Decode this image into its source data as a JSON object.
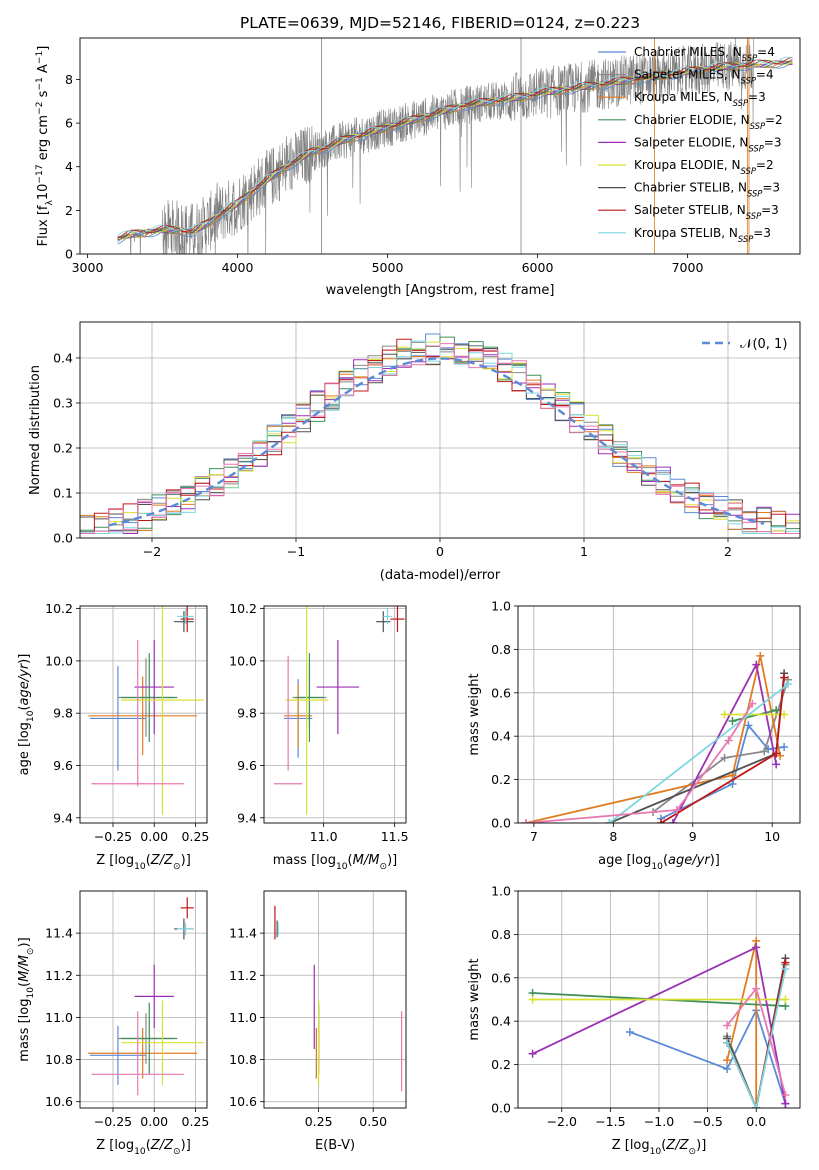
{
  "figure": {
    "title": "PLATE=0639, MJD=52146, FIBERID=0124, z=0.223"
  },
  "colors": {
    "chabrier_miles": "#5b8bd6",
    "salpeter_miles": "#8a8a8a",
    "kroupa_miles": "#e07b20",
    "chabrier_elodie": "#3f8f5a",
    "salpeter_elodie": "#9b30b5",
    "kroupa_elodie": "#d8e030",
    "chabrier_stelib": "#505050",
    "salpeter_stelib": "#c01818",
    "kroupa_stelib": "#7fd6e0",
    "pink_extra": "#e878b0",
    "data": "#808080",
    "normal": "#5b8bd6"
  },
  "chart_data": [
    {
      "id": "spectrum",
      "type": "line",
      "xlabel": "wavelength [Angstrom, rest frame]",
      "ylabel": "Flux [fλ10⁻¹⁷ erg cm⁻² s⁻¹ A⁻¹]",
      "xlim": [
        2950,
        7750
      ],
      "ylim": [
        0,
        9.9
      ],
      "xticks": [
        3000,
        4000,
        5000,
        6000,
        7000
      ],
      "yticks": [
        0,
        2,
        4,
        6,
        8
      ],
      "grid": false,
      "legend_position": "top-right",
      "legend": [
        "Chabrier MILES, N_SSP=4",
        "Salpeter MILES, N_SSP=4",
        "Kroupa MILES, N_SSP=3",
        "Chabrier ELODIE, N_SSP=2",
        "Salpeter ELODIE, N_SSP=3",
        "Kroupa ELODIE, N_SSP=2",
        "Chabrier STELIB, N_SSP=3",
        "Salpeter STELIB, N_SSP=3",
        "Kroupa STELIB, N_SSP=3"
      ],
      "model_x": [
        3200,
        3300,
        3400,
        3500,
        3600,
        3700,
        3800,
        3900,
        4000,
        4100,
        4200,
        4300,
        4400,
        4500,
        4600,
        4700,
        4800,
        4900,
        5000,
        5100,
        5200,
        5300,
        5400,
        5500,
        5600,
        5700,
        5800,
        5900,
        6000,
        6100,
        6200,
        6300,
        6400,
        6500,
        6600,
        6700,
        6800,
        6900,
        7000,
        7100,
        7200,
        7300,
        7400,
        7500,
        7600,
        7700
      ],
      "model_y": [
        0.7,
        0.9,
        1.0,
        1.1,
        1.1,
        1.0,
        1.4,
        1.9,
        2.3,
        2.9,
        3.4,
        3.9,
        4.3,
        4.7,
        4.9,
        5.2,
        5.4,
        5.6,
        5.8,
        6.0,
        6.2,
        6.4,
        6.6,
        6.8,
        6.9,
        7.0,
        7.1,
        7.2,
        7.35,
        7.45,
        7.55,
        7.65,
        7.75,
        7.85,
        7.95,
        8.05,
        8.15,
        8.25,
        8.35,
        8.45,
        8.55,
        8.6,
        8.65,
        8.7,
        8.75,
        8.8
      ],
      "data_range": [
        3220,
        7440
      ]
    },
    {
      "id": "residuals",
      "type": "step",
      "xlabel": "(data-model)/error",
      "ylabel": "Normed distribution",
      "xlim": [
        -2.5,
        2.5
      ],
      "ylim": [
        0,
        0.48
      ],
      "xticks": [
        -2,
        -1,
        0,
        1,
        2
      ],
      "yticks": [
        0.0,
        0.1,
        0.2,
        0.3,
        0.4
      ],
      "grid": true,
      "legend_position": "top-right",
      "legend": [
        "𝒩(0, 1)"
      ],
      "bin_width": 0.1,
      "n_series": 10
    },
    {
      "id": "z_age",
      "type": "errorbar",
      "xlabel": "Z [log₁₀(Z/Z⊙)]",
      "ylabel": "age  [log₁₀(age/yr)]",
      "xlim": [
        -0.45,
        0.32
      ],
      "ylim": [
        9.38,
        10.21
      ],
      "xticks": [
        -0.25,
        0.0,
        0.25
      ],
      "xtick_labels": [
        "−0.25",
        "0.00",
        "0.25"
      ],
      "yticks": [
        9.4,
        9.6,
        9.8,
        10.0,
        10.2
      ],
      "grid": true,
      "points": [
        {
          "c": "chabrier_miles",
          "x": -0.22,
          "xe": 0.17,
          "y": 9.78,
          "ye": 0.2
        },
        {
          "c": "salpeter_miles",
          "x": -0.05,
          "xe": 0.17,
          "y": 9.86,
          "ye": 0.15
        },
        {
          "c": "kroupa_miles",
          "x": -0.07,
          "xe": 0.33,
          "y": 9.79,
          "ye": 0.15
        },
        {
          "c": "chabrier_elodie",
          "x": -0.03,
          "xe": 0.17,
          "y": 9.86,
          "ye": 0.17
        },
        {
          "c": "salpeter_elodie",
          "x": 0.0,
          "xe": 0.12,
          "y": 9.9,
          "ye": 0.18
        },
        {
          "c": "kroupa_elodie",
          "x": 0.05,
          "xe": 0.25,
          "y": 9.85,
          "ye": 0.44
        },
        {
          "c": "chabrier_stelib",
          "x": 0.18,
          "xe": 0.06,
          "y": 10.15,
          "ye": 0.04
        },
        {
          "c": "salpeter_stelib",
          "x": 0.2,
          "xe": 0.04,
          "y": 10.16,
          "ye": 0.05
        },
        {
          "c": "kroupa_stelib",
          "x": 0.19,
          "xe": 0.05,
          "y": 10.17,
          "ye": 0.03
        },
        {
          "c": "pink_extra",
          "x": -0.1,
          "xe": 0.28,
          "y": 9.53,
          "ye": 0.0
        },
        {
          "c": "pink_extra",
          "x": -0.1,
          "xe": 0.0,
          "y": 9.8,
          "ye": 0.28
        }
      ]
    },
    {
      "id": "mass_age",
      "type": "errorbar",
      "xlabel": "mass [log₁₀(M/M⊙)]",
      "ylabel": "",
      "xlim": [
        10.58,
        11.58
      ],
      "ylim": [
        9.38,
        10.21
      ],
      "xticks": [
        11.0,
        11.5
      ],
      "xtick_labels": [
        "11.0",
        "11.5"
      ],
      "yticks": [
        9.4,
        9.6,
        9.8,
        10.0,
        10.2
      ],
      "grid": true,
      "points": [
        {
          "c": "chabrier_miles",
          "x": 10.82,
          "xe": 0.1,
          "y": 9.78,
          "ye": 0.15
        },
        {
          "c": "salpeter_miles",
          "x": 10.9,
          "xe": 0.12,
          "y": 9.86,
          "ye": 0.12
        },
        {
          "c": "kroupa_miles",
          "x": 10.82,
          "xe": 0.1,
          "y": 9.79,
          "ye": 0.12
        },
        {
          "c": "chabrier_elodie",
          "x": 10.9,
          "xe": 0.1,
          "y": 9.86,
          "ye": 0.17
        },
        {
          "c": "salpeter_elodie",
          "x": 11.1,
          "xe": 0.15,
          "y": 9.9,
          "ye": 0.18
        },
        {
          "c": "kroupa_elodie",
          "x": 10.88,
          "xe": 0.15,
          "y": 9.85,
          "ye": 0.44
        },
        {
          "c": "chabrier_stelib",
          "x": 11.42,
          "xe": 0.05,
          "y": 10.15,
          "ye": 0.04
        },
        {
          "c": "salpeter_stelib",
          "x": 11.52,
          "xe": 0.05,
          "y": 10.16,
          "ye": 0.05
        },
        {
          "c": "kroupa_stelib",
          "x": 11.45,
          "xe": 0.03,
          "y": 10.17,
          "ye": 0.03
        },
        {
          "c": "pink_extra",
          "x": 10.75,
          "xe": 0.1,
          "y": 9.53,
          "ye": 0.0
        },
        {
          "c": "pink_extra",
          "x": 10.75,
          "xe": 0.0,
          "y": 9.8,
          "ye": 0.22
        }
      ]
    },
    {
      "id": "weight_age",
      "type": "line",
      "xlabel": "age  [log₁₀(age/yr)]",
      "ylabel": "mass weight",
      "xlim": [
        6.8,
        10.35
      ],
      "ylim": [
        0,
        1.0
      ],
      "xticks": [
        7,
        8,
        9,
        10
      ],
      "yticks": [
        0.0,
        0.2,
        0.4,
        0.6,
        0.8,
        1.0
      ],
      "grid": true,
      "series": [
        {
          "c": "chabrier_miles",
          "x": [
            8.6,
            9.5,
            9.7,
            9.95,
            10.15
          ],
          "y": [
            0.02,
            0.18,
            0.45,
            0.34,
            0.35
          ]
        },
        {
          "c": "salpeter_miles",
          "x": [
            8.5,
            9.4,
            9.9,
            10.2
          ],
          "y": [
            0.05,
            0.3,
            0.33,
            0.66
          ]
        },
        {
          "c": "kroupa_miles",
          "x": [
            6.9,
            9.5,
            9.85,
            10.1
          ],
          "y": [
            0.0,
            0.22,
            0.77,
            0.31
          ]
        },
        {
          "c": "chabrier_elodie",
          "x": [
            9.5,
            10.05
          ],
          "y": [
            0.47,
            0.52
          ]
        },
        {
          "c": "salpeter_elodie",
          "x": [
            8.75,
            9.8,
            10.05
          ],
          "y": [
            0.0,
            0.73,
            0.27
          ]
        },
        {
          "c": "kroupa_elodie",
          "x": [
            9.4,
            10.15
          ],
          "y": [
            0.5,
            0.5
          ]
        },
        {
          "c": "chabrier_stelib",
          "x": [
            7.95,
            10.05,
            10.15
          ],
          "y": [
            0.0,
            0.32,
            0.69
          ]
        },
        {
          "c": "salpeter_stelib",
          "x": [
            8.6,
            10.05,
            10.15
          ],
          "y": [
            0.0,
            0.32,
            0.67
          ]
        },
        {
          "c": "kroupa_stelib",
          "x": [
            7.95,
            10.2
          ],
          "y": [
            0.0,
            0.64
          ]
        },
        {
          "c": "pink_extra",
          "x": [
            6.9,
            8.8,
            9.45,
            9.75
          ],
          "y": [
            0.0,
            0.06,
            0.38,
            0.55
          ]
        }
      ]
    },
    {
      "id": "z_mass",
      "type": "errorbar",
      "xlabel": "Z [log₁₀(Z/Z⊙)]",
      "ylabel": "mass [log₁₀(M/M⊙)]",
      "xlim": [
        -0.45,
        0.32
      ],
      "ylim": [
        10.57,
        11.6
      ],
      "xticks": [
        -0.25,
        0.0,
        0.25
      ],
      "xtick_labels": [
        "−0.25",
        "0.00",
        "0.25"
      ],
      "yticks": [
        10.6,
        10.8,
        11.0,
        11.2,
        11.4
      ],
      "grid": true,
      "points": [
        {
          "c": "chabrier_miles",
          "x": -0.22,
          "xe": 0.17,
          "y": 10.82,
          "ye": 0.14
        },
        {
          "c": "salpeter_miles",
          "x": -0.05,
          "xe": 0.17,
          "y": 10.9,
          "ye": 0.12
        },
        {
          "c": "kroupa_miles",
          "x": -0.07,
          "xe": 0.33,
          "y": 10.83,
          "ye": 0.12
        },
        {
          "c": "chabrier_elodie",
          "x": -0.03,
          "xe": 0.17,
          "y": 10.9,
          "ye": 0.17
        },
        {
          "c": "salpeter_elodie",
          "x": 0.0,
          "xe": 0.12,
          "y": 11.1,
          "ye": 0.15
        },
        {
          "c": "kroupa_elodie",
          "x": 0.05,
          "xe": 0.25,
          "y": 10.88,
          "ye": 0.2
        },
        {
          "c": "chabrier_stelib",
          "x": 0.18,
          "xe": 0.06,
          "y": 11.42,
          "ye": 0.05
        },
        {
          "c": "salpeter_stelib",
          "x": 0.2,
          "xe": 0.04,
          "y": 11.52,
          "ye": 0.05
        },
        {
          "c": "kroupa_stelib",
          "x": 0.19,
          "xe": 0.05,
          "y": 11.42,
          "ye": 0.03
        },
        {
          "c": "pink_extra",
          "x": -0.1,
          "xe": 0.28,
          "y": 10.73,
          "ye": 0.0
        },
        {
          "c": "pink_extra",
          "x": -0.1,
          "xe": 0.0,
          "y": 10.83,
          "ye": 0.2
        }
      ]
    },
    {
      "id": "ebv_mass",
      "type": "errorbar",
      "xlabel": "E(B-V)",
      "ylabel": "",
      "xlim": [
        0.0,
        0.65
      ],
      "ylim": [
        10.57,
        11.6
      ],
      "xticks": [
        0.25,
        0.5
      ],
      "xtick_labels": [
        "0.25",
        "0.50"
      ],
      "yticks": [
        10.6,
        10.8,
        11.0,
        11.2,
        11.4
      ],
      "grid": true,
      "points": [
        {
          "c": "chabrier_miles",
          "x": 0.24,
          "xe": 0.0,
          "y": 10.83,
          "ye": 0.12
        },
        {
          "c": "salpeter_miles",
          "x": 0.25,
          "xe": 0.0,
          "y": 10.9,
          "ye": 0.14
        },
        {
          "c": "kroupa_miles",
          "x": 0.24,
          "xe": 0.0,
          "y": 10.83,
          "ye": 0.12
        },
        {
          "c": "chabrier_elodie",
          "x": 0.25,
          "xe": 0.0,
          "y": 10.9,
          "ye": 0.17
        },
        {
          "c": "salpeter_elodie",
          "x": 0.23,
          "xe": 0.0,
          "y": 11.05,
          "ye": 0.2
        },
        {
          "c": "kroupa_elodie",
          "x": 0.25,
          "xe": 0.0,
          "y": 10.88,
          "ye": 0.2
        },
        {
          "c": "chabrier_stelib",
          "x": 0.06,
          "xe": 0.0,
          "y": 11.42,
          "ye": 0.04
        },
        {
          "c": "salpeter_stelib",
          "x": 0.05,
          "xe": 0.0,
          "y": 11.45,
          "ye": 0.08
        },
        {
          "c": "kroupa_stelib",
          "x": 0.065,
          "xe": 0.0,
          "y": 11.42,
          "ye": 0.03
        },
        {
          "c": "pink_extra",
          "x": 0.63,
          "xe": 0.0,
          "y": 10.84,
          "ye": 0.19
        }
      ]
    },
    {
      "id": "weight_z",
      "type": "line",
      "xlabel": "Z [log₁₀(Z/Z⊙)]",
      "ylabel": "mass weight",
      "xlim": [
        -2.45,
        0.45
      ],
      "ylim": [
        0,
        1.0
      ],
      "xticks": [
        -2.0,
        -1.5,
        -1.0,
        -0.5,
        0.0
      ],
      "xtick_labels": [
        "−2.0",
        "−1.5",
        "−1.0",
        "−0.5",
        "0.0"
      ],
      "yticks": [
        0.0,
        0.2,
        0.4,
        0.6,
        0.8,
        1.0
      ],
      "grid": true,
      "series": [
        {
          "c": "chabrier_miles",
          "x": [
            -1.3,
            -0.3,
            0.0,
            0.3
          ],
          "y": [
            0.35,
            0.18,
            0.45,
            0.02
          ]
        },
        {
          "c": "salpeter_miles",
          "x": [
            -0.3,
            0.0,
            0.3
          ],
          "y": [
            0.33,
            0.0,
            0.66
          ]
        },
        {
          "c": "kroupa_miles",
          "x": [
            -0.3,
            0.0,
            0.0
          ],
          "y": [
            0.22,
            0.77,
            0.0
          ]
        },
        {
          "c": "chabrier_elodie",
          "x": [
            -2.3,
            0.3
          ],
          "y": [
            0.53,
            0.47
          ]
        },
        {
          "c": "salpeter_elodie",
          "x": [
            -2.3,
            0.0,
            0.3
          ],
          "y": [
            0.25,
            0.74,
            0.02
          ]
        },
        {
          "c": "kroupa_elodie",
          "x": [
            -2.3,
            0.3
          ],
          "y": [
            0.5,
            0.5
          ]
        },
        {
          "c": "chabrier_stelib",
          "x": [
            -0.3,
            0.0,
            0.3
          ],
          "y": [
            0.32,
            0.0,
            0.69
          ]
        },
        {
          "c": "salpeter_stelib",
          "x": [
            -0.3,
            0.0,
            0.3
          ],
          "y": [
            0.3,
            0.0,
            0.67
          ]
        },
        {
          "c": "kroupa_stelib",
          "x": [
            -0.3,
            0.0,
            0.3
          ],
          "y": [
            0.3,
            0.0,
            0.64
          ]
        },
        {
          "c": "pink_extra",
          "x": [
            -0.3,
            0.0,
            0.3
          ],
          "y": [
            0.38,
            0.55,
            0.06
          ]
        }
      ]
    }
  ]
}
